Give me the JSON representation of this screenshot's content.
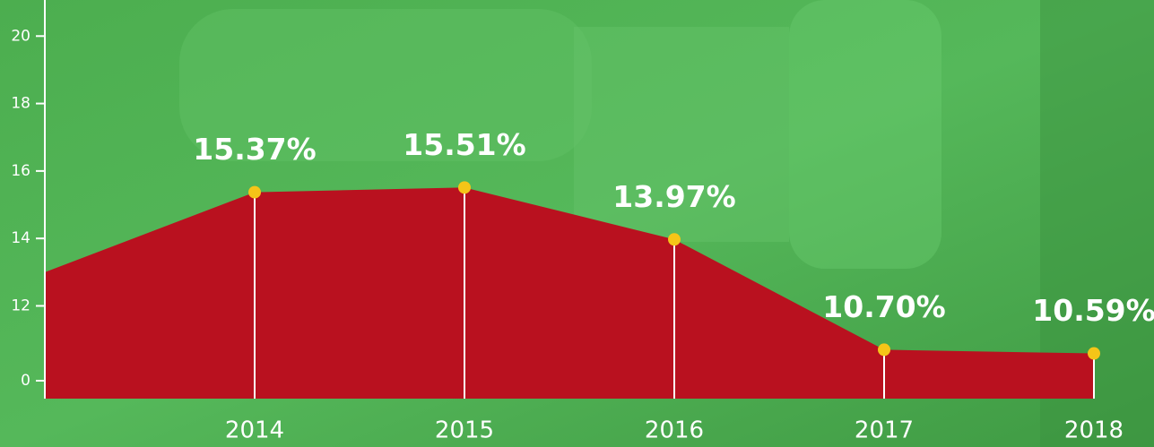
{
  "chart_data": {
    "type": "area",
    "categories": [
      null,
      "2014",
      "2015",
      "2016",
      "2017",
      "2018"
    ],
    "values": [
      13.0,
      15.37,
      15.51,
      13.97,
      10.7,
      10.59
    ],
    "value_labels": [
      null,
      "15.37%",
      "15.51%",
      "13.97%",
      "10.70%",
      "10.59%"
    ],
    "color": "#b9111f",
    "marker_color": "#f5c518",
    "ylim": [
      9.25,
      21.07
    ],
    "yticks": [
      0,
      12,
      14,
      16,
      18,
      20
    ],
    "y_axis_break": true
  }
}
